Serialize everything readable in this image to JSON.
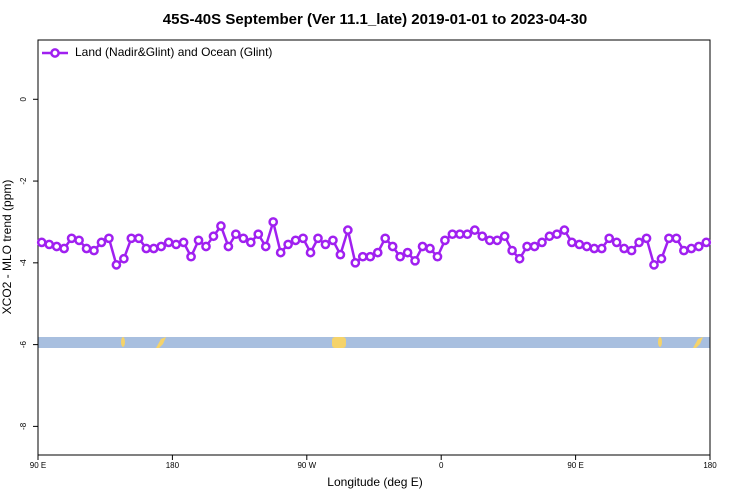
{
  "chart_data": {
    "type": "line",
    "title": "45S-40S September (Ver 11.1_late)   2019-01-01 to 2023-04-30",
    "x_label": "Longitude (deg E)",
    "y_label": "XCO2 - MLO trend (ppm)",
    "legend_position": "top-left",
    "xlim": [
      90,
      540
    ],
    "ylim": [
      -8.7,
      1.45
    ],
    "xticks": [
      {
        "value": 90,
        "label": "90 E"
      },
      {
        "value": 180,
        "label": "180"
      },
      {
        "value": 270,
        "label": "90 W"
      },
      {
        "value": 360,
        "label": "0"
      },
      {
        "value": 450,
        "label": "90 E"
      },
      {
        "value": 540,
        "label": "180"
      }
    ],
    "yticks": [
      -8,
      -6,
      -4,
      -2,
      0
    ],
    "x": [
      92.5,
      97.5,
      102.5,
      107.5,
      112.5,
      117.5,
      122.5,
      127.5,
      132.5,
      137.5,
      142.5,
      147.5,
      152.5,
      157.5,
      162.5,
      167.5,
      172.5,
      177.5,
      182.5,
      187.5,
      192.5,
      197.5,
      202.5,
      207.5,
      212.5,
      217.5,
      222.5,
      227.5,
      232.5,
      237.5,
      242.5,
      247.5,
      252.5,
      257.5,
      262.5,
      267.5,
      272.5,
      277.5,
      282.5,
      287.5,
      292.5,
      297.5,
      302.5,
      307.5,
      312.5,
      317.5,
      322.5,
      327.5,
      332.5,
      337.5,
      342.5,
      347.5,
      352.5,
      357.5,
      362.5,
      367.5,
      372.5,
      377.5,
      382.5,
      387.5,
      392.5,
      397.5,
      402.5,
      407.5,
      412.5,
      417.5,
      422.5,
      427.5,
      432.5,
      437.5,
      442.5,
      447.5,
      452.5,
      457.5,
      462.5,
      467.5,
      472.5,
      477.5,
      482.5,
      487.5,
      492.5,
      497.5,
      502.5,
      507.5,
      512.5,
      517.5,
      522.5,
      527.5,
      532.5,
      537.5
    ],
    "series": [
      {
        "name": "Land (Nadir&Glint) and Ocean (Glint)",
        "color": "#a020f0",
        "values": [
          -3.5,
          -3.55,
          -3.6,
          -3.65,
          -3.4,
          -3.45,
          -3.65,
          -3.7,
          -3.5,
          -3.4,
          -4.05,
          -3.9,
          -3.4,
          -3.4,
          -3.65,
          -3.65,
          -3.6,
          -3.5,
          -3.55,
          -3.5,
          -3.85,
          -3.45,
          -3.6,
          -3.35,
          -3.1,
          -3.6,
          -3.3,
          -3.4,
          -3.5,
          -3.3,
          -3.6,
          -3.0,
          -3.75,
          -3.55,
          -3.45,
          -3.4,
          -3.75,
          -3.4,
          -3.55,
          -3.45,
          -3.8,
          -3.2,
          -4.0,
          -3.85,
          -3.85,
          -3.75,
          -3.4,
          -3.6,
          -3.85,
          -3.75,
          -3.95,
          -3.6,
          -3.65,
          -3.85,
          -3.45,
          -3.3,
          -3.3,
          -3.3,
          -3.2,
          -3.35,
          -3.45,
          -3.45,
          -3.35,
          -3.7,
          -3.9,
          -3.6,
          -3.6,
          -3.5,
          -3.35,
          -3.3,
          -3.2,
          -3.5,
          -3.55,
          -3.6,
          -3.65,
          -3.65,
          -3.4,
          -3.5,
          -3.65,
          -3.7,
          -3.5,
          -3.4,
          -4.05,
          -3.9,
          -3.4,
          -3.4,
          -3.7,
          -3.65,
          -3.6,
          -3.5
        ]
      }
    ]
  }
}
